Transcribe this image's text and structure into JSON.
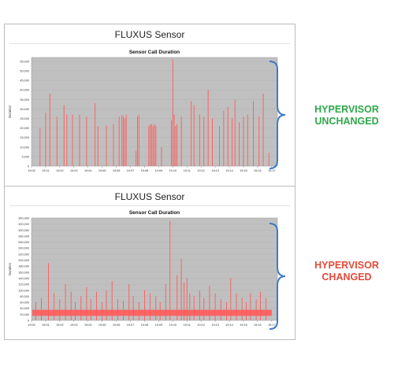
{
  "panels": [
    {
      "window_title": "FLUXUS Sensor"
    },
    {
      "window_title": "FLUXUS Sensor"
    }
  ],
  "annotations": {
    "top_line1": "HYPERVISOR",
    "top_line2": "UNCHANGED",
    "top_color": "#2ea84a",
    "bottom_line1": "HYPERVISOR",
    "bottom_line2": "CHANGED",
    "bottom_color": "#e34a3b"
  },
  "chart_data": [
    {
      "type": "bar",
      "title": "Sensor Call Duration",
      "ylabel": "Duration",
      "xlabel": "",
      "ylim": [
        0,
        57000
      ],
      "yticks": [
        0,
        5000,
        10000,
        15000,
        20000,
        25000,
        30000,
        35000,
        40000,
        45000,
        50000,
        55000
      ],
      "ytick_labels": [
        "0",
        "5,000",
        "10,000",
        "15,000",
        "20,000",
        "25,000",
        "30,000",
        "35,000",
        "40,000",
        "45,000",
        "50,000",
        "55,000"
      ],
      "xtick_labels": [
        "19:00",
        "19:01",
        "19:02",
        "19:03",
        "19:04",
        "19:05",
        "19:06",
        "19:07",
        "19:08",
        "19:09",
        "19:10",
        "19:11",
        "19:12",
        "19:13",
        "19:14",
        "19:15",
        "19:16",
        "19:17"
      ],
      "bar_color": "#ff5a5a",
      "plot_background": "#c0c0c0",
      "series": [
        {
          "x": [
            0.6,
            1.0,
            1.3,
            1.8,
            2.3,
            2.5,
            2.9,
            3.4,
            3.9,
            4.5,
            4.7,
            5.3,
            5.8,
            6.2,
            6.4,
            6.5,
            6.6,
            6.7,
            7.4,
            7.5,
            7.6,
            8.3,
            8.4,
            8.5,
            8.6,
            8.7,
            8.8,
            9.2,
            9.9,
            10.0,
            10.1,
            10.2,
            10.3,
            10.6,
            11.3,
            11.5,
            11.9,
            12.2,
            12.5,
            12.8,
            13.3,
            13.6,
            13.9,
            14.2,
            14.4,
            14.7,
            15.0,
            15.3,
            15.7,
            16.1,
            16.4,
            16.8
          ],
          "values": [
            20000,
            28000,
            38000,
            26000,
            32000,
            27000,
            27000,
            27000,
            26000,
            33000,
            21000,
            21000,
            22000,
            26000,
            27000,
            26000,
            25000,
            27000,
            8000,
            26000,
            27000,
            21000,
            22000,
            22000,
            21000,
            22000,
            21000,
            10000,
            24000,
            56000,
            27000,
            21000,
            22000,
            26000,
            34000,
            32000,
            27000,
            26000,
            40000,
            25000,
            21000,
            29000,
            31000,
            25000,
            35000,
            23000,
            26000,
            27000,
            34000,
            26000,
            38000,
            7000
          ]
        }
      ]
    },
    {
      "type": "bar",
      "title": "Sensor Call Duration",
      "ylabel": "Duration",
      "xlabel": "",
      "ylim": [
        0,
        340000
      ],
      "yticks": [
        0,
        20000,
        40000,
        60000,
        80000,
        100000,
        120000,
        140000,
        160000,
        180000,
        200000,
        220000,
        240000,
        260000,
        280000,
        300000,
        320000,
        340000
      ],
      "ytick_labels": [
        "0",
        "20,000",
        "40,000",
        "60,000",
        "80,000",
        "100,000",
        "120,000",
        "140,000",
        "160,000",
        "180,000",
        "200,000",
        "220,000",
        "240,000",
        "260,000",
        "280,000",
        "300,000",
        "320,000",
        "340,000"
      ],
      "xtick_labels": [
        "19:00",
        "19:01",
        "19:02",
        "19:03",
        "19:04",
        "19:05",
        "19:06",
        "19:07",
        "19:08",
        "19:09",
        "19:10",
        "19:11",
        "19:12",
        "19:13",
        "19:14",
        "19:15",
        "19:16",
        "19:17"
      ],
      "bar_color": "#ff5a5a",
      "plot_background": "#c0c0c0",
      "baseline_band": [
        15000,
        35000
      ],
      "series": [
        {
          "x": [
            0.3,
            0.7,
            1.2,
            1.6,
            2.0,
            2.4,
            2.8,
            3.1,
            3.5,
            3.9,
            4.2,
            4.6,
            5.0,
            5.3,
            5.7,
            6.1,
            6.5,
            6.9,
            7.2,
            7.6,
            8.0,
            8.4,
            8.8,
            9.1,
            9.5,
            9.8,
            10.3,
            10.6,
            10.8,
            11.0,
            11.2,
            11.5,
            11.9,
            12.2,
            12.6,
            13.0,
            13.4,
            13.8,
            14.1,
            14.5,
            14.9,
            15.2,
            15.5,
            15.9,
            16.2,
            16.6
          ],
          "values": [
            60000,
            75000,
            190000,
            90000,
            70000,
            120000,
            95000,
            60000,
            80000,
            110000,
            70000,
            95000,
            60000,
            100000,
            130000,
            70000,
            65000,
            120000,
            80000,
            60000,
            100000,
            90000,
            80000,
            60000,
            120000,
            330000,
            150000,
            205000,
            125000,
            140000,
            90000,
            80000,
            100000,
            75000,
            115000,
            90000,
            70000,
            60000,
            140000,
            90000,
            75000,
            60000,
            90000,
            70000,
            95000,
            75000
          ]
        }
      ]
    }
  ]
}
